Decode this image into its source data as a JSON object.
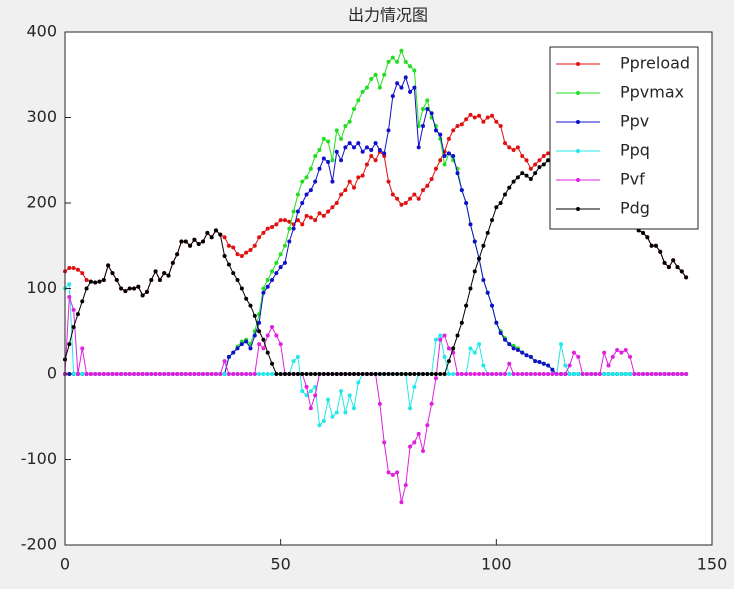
{
  "chart_data": {
    "type": "line",
    "title": "出力情况图",
    "x": [
      0,
      1,
      2,
      3,
      4,
      5,
      6,
      7,
      8,
      9,
      10,
      11,
      12,
      13,
      14,
      15,
      16,
      17,
      18,
      19,
      20,
      21,
      22,
      23,
      24,
      25,
      26,
      27,
      28,
      29,
      30,
      31,
      32,
      33,
      34,
      35,
      36,
      37,
      38,
      39,
      40,
      41,
      42,
      43,
      44,
      45,
      46,
      47,
      48,
      49,
      50,
      51,
      52,
      53,
      54,
      55,
      56,
      57,
      58,
      59,
      60,
      61,
      62,
      63,
      64,
      65,
      66,
      67,
      68,
      69,
      70,
      71,
      72,
      73,
      74,
      75,
      76,
      77,
      78,
      79,
      80,
      81,
      82,
      83,
      84,
      85,
      86,
      87,
      88,
      89,
      90,
      91,
      92,
      93,
      94,
      95,
      96,
      97,
      98,
      99,
      100,
      101,
      102,
      103,
      104,
      105,
      106,
      107,
      108,
      109,
      110,
      111,
      112,
      113,
      114,
      115,
      116,
      117,
      118,
      119,
      120,
      121,
      122,
      123,
      124,
      125,
      126,
      127,
      128,
      129,
      130,
      131,
      132,
      133,
      134,
      135,
      136,
      137,
      138,
      139,
      140,
      141,
      142,
      143,
      144
    ],
    "series": [
      {
        "name": "Ppreload",
        "color": "#e01010",
        "values": [
          120,
          124,
          124,
          122,
          118,
          110,
          108,
          107,
          108,
          110,
          127,
          118,
          110,
          100,
          97,
          100,
          100,
          102,
          92,
          96,
          110,
          120,
          110,
          118,
          115,
          130,
          140,
          155,
          155,
          150,
          157,
          152,
          155,
          165,
          160,
          168,
          163,
          160,
          150,
          148,
          140,
          138,
          142,
          145,
          150,
          160,
          165,
          170,
          172,
          175,
          180,
          180,
          178,
          175,
          180,
          175,
          185,
          183,
          180,
          188,
          185,
          190,
          195,
          200,
          210,
          215,
          225,
          218,
          230,
          232,
          245,
          255,
          250,
          260,
          255,
          225,
          210,
          205,
          198,
          200,
          205,
          210,
          205,
          215,
          220,
          228,
          240,
          250,
          260,
          275,
          285,
          290,
          292,
          298,
          303,
          300,
          302,
          295,
          300,
          302,
          295,
          290,
          270,
          265,
          262,
          265,
          255,
          250,
          240,
          245,
          250,
          255,
          258,
          262,
          260,
          262,
          265,
          263,
          266,
          260,
          262,
          258,
          255,
          250,
          245,
          240,
          230,
          220,
          210,
          200,
          190,
          180,
          172,
          168,
          165,
          160,
          150,
          150,
          143,
          130,
          125,
          133,
          125,
          120,
          113
        ]
      },
      {
        "name": "Ppvmax",
        "color": "#22dd22",
        "values": [
          0,
          0,
          0,
          0,
          0,
          0,
          0,
          0,
          0,
          0,
          0,
          0,
          0,
          0,
          0,
          0,
          0,
          0,
          0,
          0,
          0,
          0,
          0,
          0,
          0,
          0,
          0,
          0,
          0,
          0,
          0,
          0,
          0,
          0,
          0,
          0,
          0,
          0,
          20,
          25,
          32,
          38,
          40,
          35,
          50,
          70,
          100,
          110,
          120,
          130,
          140,
          150,
          170,
          190,
          210,
          225,
          230,
          240,
          255,
          262,
          275,
          272,
          250,
          285,
          275,
          290,
          295,
          310,
          320,
          330,
          335,
          345,
          350,
          335,
          350,
          365,
          370,
          365,
          378,
          365,
          360,
          355,
          290,
          310,
          320,
          300,
          290,
          275,
          245,
          258,
          250,
          240,
          215,
          200,
          175,
          155,
          135,
          110,
          95,
          80,
          60,
          50,
          42,
          35,
          33,
          30,
          25,
          22,
          20,
          15,
          14,
          12,
          10,
          5,
          0,
          0,
          0,
          0,
          0,
          0,
          0,
          0,
          0,
          0,
          0,
          0,
          0,
          0,
          0,
          0,
          0,
          0,
          0,
          0,
          0,
          0,
          0,
          0,
          0,
          0,
          0,
          0,
          0,
          0,
          0
        ]
      },
      {
        "name": "Ppv",
        "color": "#1010cc",
        "values": [
          0,
          0,
          0,
          0,
          0,
          0,
          0,
          0,
          0,
          0,
          0,
          0,
          0,
          0,
          0,
          0,
          0,
          0,
          0,
          0,
          0,
          0,
          0,
          0,
          0,
          0,
          0,
          0,
          0,
          0,
          0,
          0,
          0,
          0,
          0,
          0,
          0,
          0,
          20,
          25,
          30,
          35,
          38,
          30,
          45,
          60,
          95,
          102,
          110,
          118,
          125,
          130,
          155,
          170,
          190,
          200,
          210,
          215,
          225,
          240,
          252,
          248,
          225,
          260,
          250,
          265,
          270,
          265,
          270,
          260,
          265,
          262,
          270,
          262,
          258,
          285,
          325,
          340,
          335,
          347,
          330,
          335,
          265,
          290,
          310,
          305,
          285,
          280,
          255,
          258,
          255,
          235,
          215,
          200,
          175,
          155,
          135,
          110,
          95,
          80,
          60,
          48,
          40,
          35,
          30,
          28,
          25,
          22,
          20,
          15,
          14,
          12,
          10,
          5,
          0,
          0,
          0,
          0,
          0,
          0,
          0,
          0,
          0,
          0,
          0,
          0,
          0,
          0,
          0,
          0,
          0,
          0,
          0,
          0,
          0,
          0,
          0,
          0,
          0,
          0,
          0,
          0,
          0,
          0,
          0
        ]
      },
      {
        "name": "Ppq",
        "color": "#22e8e8",
        "values": [
          100,
          105,
          0,
          0,
          0,
          0,
          0,
          0,
          0,
          0,
          0,
          0,
          0,
          0,
          0,
          0,
          0,
          0,
          0,
          0,
          0,
          0,
          0,
          0,
          0,
          0,
          0,
          0,
          0,
          0,
          0,
          0,
          0,
          0,
          0,
          0,
          0,
          0,
          0,
          0,
          0,
          0,
          0,
          0,
          0,
          0,
          0,
          0,
          0,
          0,
          0,
          0,
          0,
          15,
          20,
          -20,
          -25,
          -20,
          -15,
          -60,
          -55,
          -30,
          -50,
          -45,
          -20,
          -45,
          -25,
          -40,
          -10,
          0,
          0,
          0,
          0,
          0,
          0,
          0,
          0,
          0,
          0,
          0,
          -40,
          -15,
          0,
          0,
          0,
          0,
          40,
          45,
          20,
          0,
          0,
          0,
          0,
          0,
          30,
          25,
          35,
          10,
          0,
          0,
          0,
          0,
          0,
          0,
          0,
          0,
          0,
          0,
          0,
          0,
          0,
          0,
          0,
          0,
          0,
          35,
          10,
          0,
          0,
          0,
          0,
          0,
          0,
          0,
          0,
          0,
          0,
          0,
          0,
          0,
          0,
          0,
          0,
          0,
          0,
          0,
          0,
          0,
          0,
          0,
          0,
          0,
          0,
          0,
          0
        ]
      },
      {
        "name": "Pvf",
        "color": "#e020e0",
        "values": [
          0,
          90,
          75,
          0,
          30,
          0,
          0,
          0,
          0,
          0,
          0,
          0,
          0,
          0,
          0,
          0,
          0,
          0,
          0,
          0,
          0,
          0,
          0,
          0,
          0,
          0,
          0,
          0,
          0,
          0,
          0,
          0,
          0,
          0,
          0,
          0,
          0,
          15,
          0,
          0,
          0,
          0,
          0,
          0,
          0,
          35,
          30,
          45,
          55,
          45,
          35,
          0,
          0,
          0,
          0,
          0,
          -15,
          -40,
          -25,
          0,
          0,
          0,
          0,
          0,
          0,
          0,
          0,
          0,
          0,
          0,
          0,
          0,
          0,
          -35,
          -80,
          -115,
          -118,
          -115,
          -150,
          -130,
          -85,
          -80,
          -70,
          -90,
          -60,
          -35,
          -5,
          40,
          45,
          30,
          25,
          0,
          0,
          0,
          0,
          0,
          0,
          0,
          0,
          0,
          0,
          0,
          0,
          12,
          0,
          0,
          0,
          0,
          0,
          0,
          0,
          0,
          0,
          0,
          0,
          0,
          0,
          10,
          25,
          20,
          0,
          0,
          0,
          0,
          0,
          25,
          10,
          20,
          28,
          25,
          28,
          20,
          0,
          0,
          0,
          0,
          0,
          0,
          0,
          0,
          0,
          0,
          0,
          0,
          0
        ]
      },
      {
        "name": "Pdg",
        "color": "#000000",
        "values": [
          17,
          35,
          55,
          70,
          85,
          100,
          108,
          107,
          108,
          110,
          127,
          118,
          110,
          100,
          97,
          100,
          100,
          102,
          92,
          96,
          110,
          120,
          110,
          118,
          115,
          130,
          140,
          155,
          155,
          150,
          157,
          152,
          155,
          165,
          160,
          168,
          163,
          138,
          128,
          118,
          110,
          100,
          88,
          80,
          68,
          50,
          40,
          25,
          12,
          0,
          0,
          0,
          0,
          0,
          0,
          0,
          0,
          0,
          0,
          0,
          0,
          0,
          0,
          0,
          0,
          0,
          0,
          0,
          0,
          0,
          0,
          0,
          0,
          0,
          0,
          0,
          0,
          0,
          0,
          0,
          0,
          0,
          0,
          0,
          0,
          0,
          0,
          0,
          0,
          15,
          30,
          45,
          60,
          80,
          100,
          120,
          135,
          150,
          165,
          180,
          195,
          200,
          210,
          218,
          225,
          230,
          235,
          232,
          228,
          235,
          242,
          245,
          250,
          255,
          260,
          262,
          265,
          263,
          266,
          260,
          262,
          258,
          255,
          250,
          245,
          240,
          230,
          220,
          210,
          200,
          190,
          180,
          172,
          168,
          165,
          160,
          150,
          150,
          143,
          130,
          125,
          133,
          125,
          120,
          113
        ]
      }
    ],
    "xlim": [
      0,
      150
    ],
    "xticks": [
      0,
      50,
      100,
      150
    ],
    "ylim": [
      -200,
      400
    ],
    "yticks": [
      -200,
      -100,
      0,
      100,
      200,
      300,
      400
    ],
    "legend": "upper right"
  }
}
